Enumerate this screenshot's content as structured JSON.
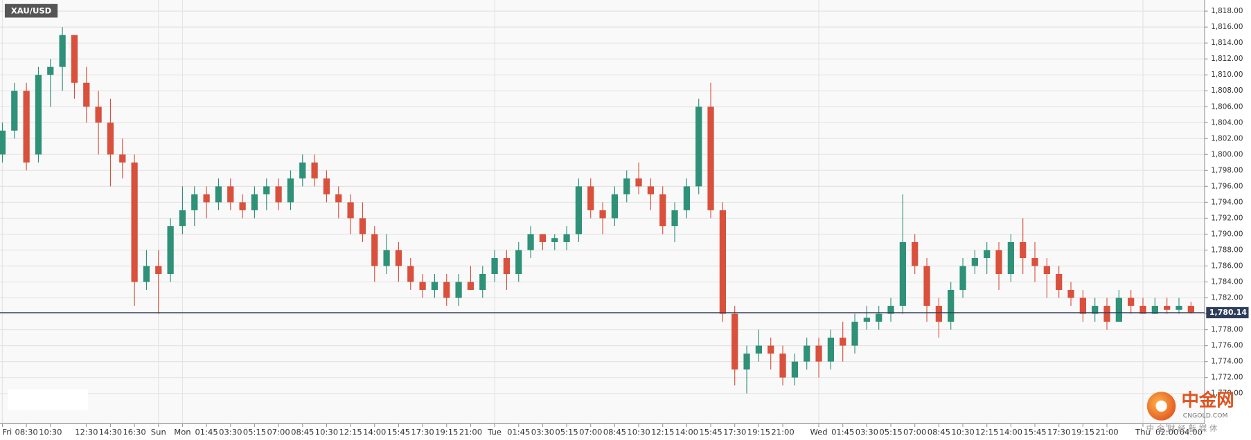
{
  "chart_data": {
    "type": "candlestick",
    "title": "XAU/USD",
    "categories": [
      "Fri",
      null,
      "08:30",
      null,
      "10:30",
      null,
      null,
      "12:30",
      null,
      "14:30",
      null,
      "16:30",
      null,
      "Sun",
      null,
      "Mon",
      null,
      "01:45",
      null,
      "03:30",
      null,
      "05:15",
      null,
      "07:00",
      null,
      "08:45",
      null,
      "10:30",
      null,
      "12:15",
      null,
      "14:00",
      null,
      "15:45",
      null,
      "17:30",
      null,
      "19:15",
      null,
      "21:00",
      null,
      "Tue",
      null,
      "01:45",
      null,
      "03:30",
      null,
      "05:15",
      null,
      "07:00",
      null,
      "08:45",
      null,
      "10:30",
      null,
      "12:15",
      null,
      "14:00",
      null,
      "15:45",
      null,
      "17:30",
      null,
      "19:15",
      null,
      "21:00",
      null,
      null,
      "Wed",
      null,
      "01:45",
      null,
      "03:30",
      null,
      "05:15",
      null,
      "07:00",
      null,
      "08:45",
      null,
      "10:30",
      null,
      "12:15",
      null,
      "14:00",
      null,
      "15:45",
      null,
      "17:30",
      null,
      "19:15",
      null,
      "21:00",
      null,
      null,
      "Thu",
      null,
      "02:00",
      null,
      "04:00"
    ],
    "open": [
      1800,
      1803,
      1808,
      1800,
      1810,
      1811,
      1815,
      1809,
      1806,
      1804,
      1800,
      1799,
      1784,
      1786,
      1785,
      1791,
      1793,
      1795,
      1794,
      1796,
      1794,
      1793,
      1795,
      1796,
      1794,
      1797,
      1799,
      1797,
      1795,
      1794,
      1792,
      1790,
      1786,
      1788,
      1786,
      1784,
      1783,
      1784,
      1782,
      1784,
      1783,
      1785,
      1787,
      1785,
      1788,
      1790,
      1789,
      1789,
      1790,
      1796,
      1793,
      1792,
      1795,
      1797,
      1796,
      1795,
      1791,
      1793,
      1796,
      1806,
      1793,
      1780,
      1773,
      1775,
      1776,
      1775,
      1772,
      1774,
      1776,
      1774,
      1777,
      1776,
      1779,
      1779,
      1780,
      1781,
      1789,
      1786,
      1781,
      1779,
      1783,
      1786,
      1787,
      1788,
      1785,
      1789,
      1787,
      1786,
      1785,
      1783,
      1782,
      1780,
      1781,
      1779,
      1782,
      1781,
      1780,
      1781,
      1780.5,
      1781
    ],
    "high": [
      1804,
      1809,
      1809,
      1811,
      1812,
      1816,
      1815,
      1811,
      1808,
      1807,
      1802,
      1800,
      1788,
      1788,
      1792,
      1796,
      1796,
      1796,
      1797,
      1797,
      1795,
      1796,
      1797,
      1797,
      1798,
      1800,
      1800,
      1798,
      1796,
      1795,
      1794,
      1791,
      1790,
      1789,
      1787,
      1785,
      1785,
      1785,
      1785,
      1786,
      1786,
      1788,
      1788,
      1789,
      1791,
      1790,
      1790,
      1791,
      1797,
      1797,
      1794,
      1796,
      1798,
      1799,
      1797,
      1796,
      1794,
      1797,
      1807,
      1809,
      1794,
      1781,
      1776,
      1778,
      1777,
      1776,
      1775,
      1777,
      1777,
      1778,
      1779,
      1780,
      1781,
      1781,
      1782,
      1795,
      1790,
      1787,
      1782,
      1784,
      1787,
      1788,
      1789,
      1789,
      1790,
      1792,
      1789,
      1787,
      1786,
      1784,
      1783,
      1782,
      1782,
      1783,
      1783,
      1782,
      1782,
      1782,
      1782,
      1781.5
    ],
    "low": [
      1799,
      1802,
      1798,
      1799,
      1806,
      1808,
      1807,
      1804,
      1800,
      1796,
      1797,
      1781,
      1783,
      1780,
      1784,
      1790,
      1791,
      1792,
      1793,
      1793,
      1792,
      1792,
      1793,
      1793,
      1793,
      1796,
      1796,
      1794,
      1792,
      1790,
      1789,
      1784,
      1785,
      1784,
      1783,
      1782,
      1782,
      1781,
      1781,
      1783,
      1782,
      1784,
      1783,
      1784,
      1787,
      1788,
      1788,
      1788,
      1789,
      1792,
      1790,
      1791,
      1794,
      1795,
      1793,
      1790,
      1789,
      1792,
      1795,
      1792,
      1779,
      1771,
      1770,
      1774,
      1773,
      1771,
      1771,
      1773,
      1772,
      1773,
      1774,
      1775,
      1778,
      1778,
      1779,
      1780,
      1785,
      1779,
      1777,
      1778,
      1782,
      1785,
      1785,
      1783,
      1784,
      1785,
      1784,
      1782,
      1782,
      1781,
      1779,
      1779,
      1778,
      1779,
      1780,
      1780,
      1780,
      1780,
      1780,
      1780
    ],
    "close": [
      1803,
      1808,
      1799,
      1810,
      1811,
      1815,
      1809,
      1806,
      1804,
      1800,
      1799,
      1784,
      1786,
      1785,
      1791,
      1793,
      1795,
      1794,
      1796,
      1794,
      1793,
      1795,
      1796,
      1794,
      1797,
      1799,
      1797,
      1795,
      1794,
      1792,
      1790,
      1786,
      1788,
      1786,
      1784,
      1783,
      1784,
      1782,
      1784,
      1783,
      1785,
      1787,
      1785,
      1788,
      1790,
      1789,
      1789.5,
      1790,
      1796,
      1793,
      1792,
      1795,
      1797,
      1796,
      1795,
      1791,
      1793,
      1796,
      1806,
      1793,
      1780,
      1773,
      1775,
      1776,
      1775,
      1772,
      1774,
      1776,
      1774,
      1777,
      1776,
      1779,
      1779.5,
      1780,
      1781,
      1789,
      1786,
      1781,
      1779,
      1783,
      1786,
      1787,
      1788,
      1785,
      1789,
      1787,
      1786,
      1785,
      1783,
      1782,
      1780,
      1781,
      1779,
      1782,
      1781,
      1780,
      1781,
      1780.5,
      1781,
      1780.14
    ],
    "up_color": "#2e9178",
    "down_color": "#d9503c",
    "ylim": [
      1766.2,
      1819.4
    ],
    "yticks": [
      {
        "value": 1770,
        "label": "1,770.00"
      },
      {
        "value": 1772,
        "label": "1,772.00"
      },
      {
        "value": 1774,
        "label": "1,774.00"
      },
      {
        "value": 1776,
        "label": "1,776.00"
      },
      {
        "value": 1778,
        "label": "1,778.00"
      },
      {
        "value": 1780,
        "label": "1,780.00"
      },
      {
        "value": 1782,
        "label": "1,782.00"
      },
      {
        "value": 1784,
        "label": "1,784.00"
      },
      {
        "value": 1786,
        "label": "1,786.00"
      },
      {
        "value": 1788,
        "label": "1,788.00"
      },
      {
        "value": 1790,
        "label": "1,790.00"
      },
      {
        "value": 1792,
        "label": "1,792.00"
      },
      {
        "value": 1794,
        "label": "1,794.00"
      },
      {
        "value": 1796,
        "label": "1,796.00"
      },
      {
        "value": 1798,
        "label": "1,798.00"
      },
      {
        "value": 1800,
        "label": "1,800.00"
      },
      {
        "value": 1802,
        "label": "1,802.00"
      },
      {
        "value": 1804,
        "label": "1,804.00"
      },
      {
        "value": 1806,
        "label": "1,806.00"
      },
      {
        "value": 1808,
        "label": "1,808.00"
      },
      {
        "value": 1810,
        "label": "1,810.00"
      },
      {
        "value": 1812,
        "label": "1,812.00"
      },
      {
        "value": 1814,
        "label": "1,814.00"
      },
      {
        "value": 1816,
        "label": "1,816.00"
      },
      {
        "value": 1818,
        "label": "1,818.00"
      }
    ],
    "grid": true,
    "last_price": {
      "value": 1780.14,
      "label": "1,780.14"
    },
    "last_price_color": "#2d3d5a",
    "watermark": {
      "name": "中金网",
      "site": "CNGOLD.COM",
      "tagline": "中 金 财 经 新 媒 体"
    }
  }
}
